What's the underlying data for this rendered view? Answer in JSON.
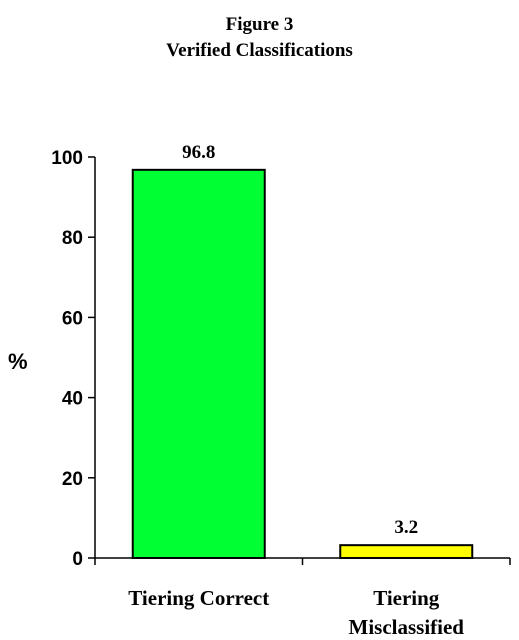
{
  "chart_data": {
    "type": "bar",
    "title": "Figure 3",
    "subtitle": "Verified Classifications",
    "ylabel": "%",
    "xlabel": "",
    "ylim": [
      0,
      100
    ],
    "yticks": [
      0,
      20,
      40,
      60,
      80,
      100
    ],
    "grid": false,
    "legend": "none",
    "categories": [
      [
        "Tiering Correct"
      ],
      [
        "Tiering",
        "Misclassified"
      ]
    ],
    "values": [
      96.8,
      3.2
    ],
    "data_labels": [
      "96.8",
      "3.2"
    ],
    "colors": [
      "#00ff33",
      "#ffff00"
    ]
  }
}
